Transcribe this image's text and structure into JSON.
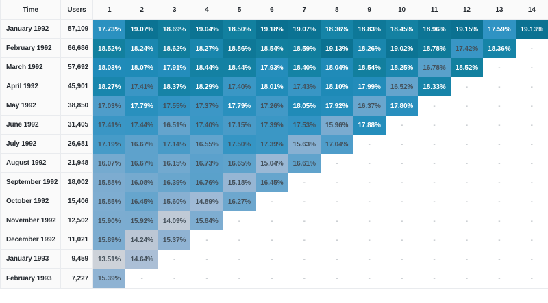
{
  "chart_data": {
    "type": "heatmap",
    "description": "Cohort retention table: monthly user cohorts vs retention percentage per period",
    "columns": [
      "Time",
      "Users",
      "1",
      "2",
      "3",
      "4",
      "5",
      "6",
      "7",
      "8",
      "9",
      "10",
      "11",
      "12",
      "13",
      "14"
    ],
    "empty_placeholder": "-",
    "rows": [
      {
        "time": "January 1992",
        "users": "87,109",
        "values": [
          17.73,
          19.07,
          18.69,
          19.04,
          18.5,
          19.18,
          19.07,
          18.36,
          18.83,
          18.45,
          18.96,
          19.15,
          17.59,
          19.13
        ]
      },
      {
        "time": "February 1992",
        "users": "66,686",
        "values": [
          18.52,
          18.24,
          18.62,
          18.27,
          18.86,
          18.54,
          18.59,
          19.13,
          18.26,
          19.02,
          18.78,
          17.42,
          18.36
        ]
      },
      {
        "time": "March 1992",
        "users": "57,692",
        "values": [
          18.03,
          18.07,
          17.91,
          18.44,
          18.44,
          17.93,
          18.4,
          18.04,
          18.54,
          18.25,
          16.78,
          18.52
        ]
      },
      {
        "time": "April 1992",
        "users": "45,901",
        "values": [
          18.27,
          17.41,
          18.37,
          18.29,
          17.4,
          18.01,
          17.43,
          18.1,
          17.99,
          16.52,
          18.33
        ]
      },
      {
        "time": "May 1992",
        "users": "38,850",
        "values": [
          17.03,
          17.79,
          17.55,
          17.37,
          17.79,
          17.26,
          18.05,
          17.92,
          16.37,
          17.8
        ]
      },
      {
        "time": "June 1992",
        "users": "31,405",
        "values": [
          17.41,
          17.44,
          16.51,
          17.4,
          17.15,
          17.39,
          17.53,
          15.96,
          17.88
        ]
      },
      {
        "time": "July 1992",
        "users": "26,681",
        "values": [
          17.19,
          16.67,
          17.14,
          16.55,
          17.5,
          17.39,
          15.63,
          17.04
        ]
      },
      {
        "time": "August 1992",
        "users": "21,948",
        "values": [
          16.07,
          16.67,
          16.15,
          16.73,
          16.65,
          15.04,
          16.61
        ]
      },
      {
        "time": "September 1992",
        "users": "18,002",
        "values": [
          15.88,
          16.08,
          16.39,
          16.76,
          15.18,
          16.45
        ]
      },
      {
        "time": "October 1992",
        "users": "15,406",
        "values": [
          15.85,
          16.45,
          15.6,
          14.89,
          16.27
        ]
      },
      {
        "time": "November 1992",
        "users": "12,502",
        "values": [
          15.9,
          15.92,
          14.09,
          15.84
        ]
      },
      {
        "time": "December 1992",
        "users": "11,021",
        "values": [
          15.89,
          14.24,
          15.37
        ]
      },
      {
        "time": "January 1993",
        "users": "9,459",
        "values": [
          13.51,
          14.64
        ]
      },
      {
        "time": "February 1993",
        "users": "7,227",
        "values": [
          15.39
        ]
      }
    ],
    "layout": {
      "value_suffix": "%",
      "value_decimals": 2,
      "grid": false,
      "legend": false
    },
    "colors": {
      "scale_stops": [
        [
          13.5,
          "#cdd2d9"
        ],
        [
          14.2,
          "#bec8d5"
        ],
        [
          14.9,
          "#9fbad6"
        ],
        [
          15.6,
          "#88b0d2"
        ],
        [
          16.3,
          "#6ca7ce"
        ],
        [
          17.0,
          "#519eca"
        ],
        [
          17.6,
          "#2f93c3"
        ],
        [
          18.1,
          "#1e8ab7"
        ],
        [
          18.5,
          "#12809f"
        ],
        [
          19.2,
          "#0a7090"
        ]
      ],
      "white_text_min": 17.56,
      "white_text": "#ffffff",
      "dark_text": "#44505a",
      "label_text": "#24292f",
      "empty_text": "#9aa1a8",
      "header_bg": "#fafafa",
      "border": "#e9ebee"
    }
  }
}
